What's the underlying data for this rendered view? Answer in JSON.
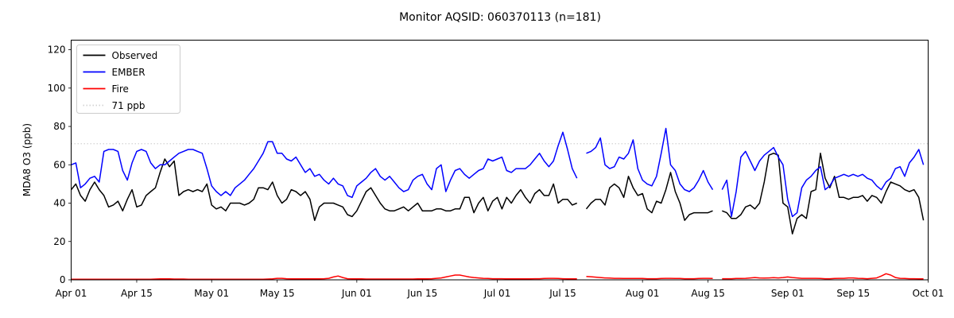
{
  "chart_data": {
    "type": "line",
    "title": "Monitor AQSID: 060370113 (n=181)",
    "xlabel": "",
    "ylabel": "MDA8 O3 (ppb)",
    "ylim": [
      0,
      125
    ],
    "y_ticks": [
      0,
      20,
      40,
      60,
      80,
      100,
      120
    ],
    "x_range_days": [
      0,
      183
    ],
    "x_ticks": [
      {
        "day": 0,
        "label": "Apr 01"
      },
      {
        "day": 14,
        "label": "Apr 15"
      },
      {
        "day": 30,
        "label": "May 01"
      },
      {
        "day": 44,
        "label": "May 15"
      },
      {
        "day": 61,
        "label": "Jun 01"
      },
      {
        "day": 75,
        "label": "Jun 15"
      },
      {
        "day": 91,
        "label": "Jul 01"
      },
      {
        "day": 105,
        "label": "Jul 15"
      },
      {
        "day": 122,
        "label": "Aug 01"
      },
      {
        "day": 136,
        "label": "Aug 15"
      },
      {
        "day": 153,
        "label": "Sep 01"
      },
      {
        "day": 167,
        "label": "Sep 15"
      },
      {
        "day": 183,
        "label": "Oct 01"
      }
    ],
    "grid": false,
    "legend_position": "upper left",
    "reference_line": {
      "value": 71,
      "label": "71 ppb",
      "color": "#d3d3d3",
      "style": "dotted"
    },
    "missing_days_note": "gaps in all series near Jul 19 and Aug 17",
    "series": [
      {
        "name": "Observed",
        "color": "#000000",
        "style": "solid",
        "values": [
          47,
          50,
          44,
          41,
          47,
          51,
          47,
          44,
          38,
          39,
          41,
          36,
          42,
          47,
          38,
          39,
          44,
          46,
          48,
          56,
          63,
          59,
          62,
          44,
          46,
          47,
          46,
          47,
          46,
          50,
          39,
          37,
          38,
          36,
          40,
          40,
          40,
          39,
          40,
          42,
          48,
          48,
          47,
          51,
          44,
          40,
          42,
          47,
          46,
          44,
          46,
          42,
          31,
          38,
          40,
          40,
          40,
          39,
          38,
          34,
          33,
          36,
          41,
          46,
          48,
          44,
          40,
          37,
          36,
          36,
          37,
          38,
          36,
          38,
          40,
          36,
          36,
          36,
          37,
          37,
          36,
          36,
          37,
          37,
          43,
          43,
          35,
          40,
          43,
          36,
          41,
          43,
          37,
          43,
          40,
          44,
          47,
          43,
          40,
          45,
          47,
          44,
          44,
          50,
          40,
          42,
          42,
          39,
          40,
          null,
          37,
          40,
          42,
          42,
          39,
          48,
          50,
          48,
          43,
          54,
          48,
          44,
          45,
          37,
          35,
          41,
          40,
          47,
          56,
          46,
          40,
          31,
          34,
          35,
          35,
          35,
          35,
          36,
          null,
          36,
          35,
          32,
          32,
          34,
          38,
          39,
          37,
          40,
          51,
          65,
          66,
          65,
          40,
          38,
          24,
          32,
          34,
          32,
          46,
          47,
          66,
          53,
          48,
          54,
          43,
          43,
          42,
          43,
          43,
          44,
          41,
          44,
          43,
          40,
          46,
          51,
          50,
          49,
          47,
          46,
          47,
          43,
          31
        ]
      },
      {
        "name": "EMBER",
        "color": "#0000ff",
        "style": "solid",
        "values": [
          60,
          61,
          48,
          50,
          53,
          54,
          51,
          67,
          68,
          68,
          67,
          57,
          52,
          61,
          67,
          68,
          67,
          61,
          58,
          60,
          60,
          62,
          64,
          66,
          67,
          68,
          68,
          67,
          66,
          58,
          49,
          46,
          44,
          46,
          44,
          48,
          50,
          52,
          55,
          58,
          62,
          66,
          72,
          72,
          66,
          66,
          63,
          62,
          64,
          60,
          56,
          58,
          54,
          55,
          52,
          50,
          53,
          50,
          49,
          44,
          43,
          49,
          51,
          53,
          56,
          58,
          54,
          52,
          54,
          51,
          48,
          46,
          47,
          52,
          54,
          55,
          50,
          47,
          58,
          60,
          46,
          52,
          57,
          58,
          55,
          53,
          55,
          57,
          58,
          63,
          62,
          63,
          64,
          57,
          56,
          58,
          58,
          58,
          60,
          63,
          66,
          62,
          59,
          62,
          70,
          77,
          68,
          58,
          53,
          null,
          66,
          67,
          69,
          74,
          60,
          58,
          59,
          64,
          63,
          66,
          73,
          58,
          52,
          50,
          49,
          54,
          66,
          79,
          60,
          57,
          50,
          47,
          46,
          48,
          52,
          57,
          51,
          47,
          null,
          47,
          52,
          33,
          46,
          64,
          67,
          62,
          57,
          62,
          65,
          67,
          69,
          64,
          60,
          42,
          33,
          35,
          48,
          52,
          54,
          57,
          59,
          47,
          49,
          53,
          54,
          55,
          54,
          55,
          54,
          55,
          53,
          52,
          49,
          47,
          51,
          53,
          58,
          59,
          54,
          61,
          64,
          68,
          60
        ]
      },
      {
        "name": "Fire",
        "color": "#ff0000",
        "style": "solid",
        "values": [
          0.3,
          0.3,
          0.3,
          0.3,
          0.3,
          0.3,
          0.3,
          0.3,
          0.3,
          0.3,
          0.3,
          0.3,
          0.3,
          0.3,
          0.3,
          0.3,
          0.3,
          0.3,
          0.4,
          0.5,
          0.5,
          0.5,
          0.4,
          0.4,
          0.4,
          0.3,
          0.3,
          0.3,
          0.3,
          0.3,
          0.3,
          0.3,
          0.3,
          0.3,
          0.3,
          0.3,
          0.3,
          0.3,
          0.3,
          0.3,
          0.3,
          0.3,
          0.4,
          0.5,
          0.8,
          0.8,
          0.6,
          0.5,
          0.5,
          0.5,
          0.5,
          0.5,
          0.5,
          0.5,
          0.6,
          0.8,
          1.5,
          2.0,
          1.2,
          0.6,
          0.5,
          0.5,
          0.5,
          0.4,
          0.4,
          0.4,
          0.4,
          0.4,
          0.4,
          0.4,
          0.4,
          0.4,
          0.4,
          0.4,
          0.5,
          0.5,
          0.5,
          0.6,
          0.8,
          1.0,
          1.5,
          2.0,
          2.5,
          2.5,
          2.0,
          1.5,
          1.2,
          1.0,
          0.8,
          0.7,
          0.6,
          0.6,
          0.6,
          0.5,
          0.5,
          0.5,
          0.5,
          0.5,
          0.5,
          0.6,
          0.6,
          0.7,
          0.8,
          0.8,
          0.7,
          0.6,
          0.5,
          0.5,
          0.5,
          null,
          1.8,
          1.6,
          1.4,
          1.2,
          1.0,
          0.9,
          0.8,
          0.8,
          0.7,
          0.7,
          0.7,
          0.7,
          0.7,
          0.6,
          0.6,
          0.6,
          0.7,
          0.8,
          0.8,
          0.7,
          0.7,
          0.6,
          0.6,
          0.6,
          0.7,
          0.8,
          0.8,
          0.7,
          null,
          0.6,
          0.6,
          0.6,
          0.7,
          0.7,
          0.8,
          1.0,
          1.2,
          1.0,
          0.9,
          1.0,
          1.1,
          1.0,
          1.2,
          1.5,
          1.2,
          1.0,
          0.8,
          0.8,
          0.8,
          0.8,
          0.7,
          0.6,
          0.6,
          0.7,
          0.8,
          0.8,
          1.0,
          1.0,
          0.8,
          0.7,
          0.6,
          0.8,
          1.0,
          2.0,
          3.2,
          2.5,
          1.2,
          0.8,
          0.7,
          0.6,
          0.6,
          0.5,
          0.5
        ]
      }
    ],
    "legend_entries": [
      "Observed",
      "EMBER",
      "Fire",
      "71 ppb"
    ]
  }
}
